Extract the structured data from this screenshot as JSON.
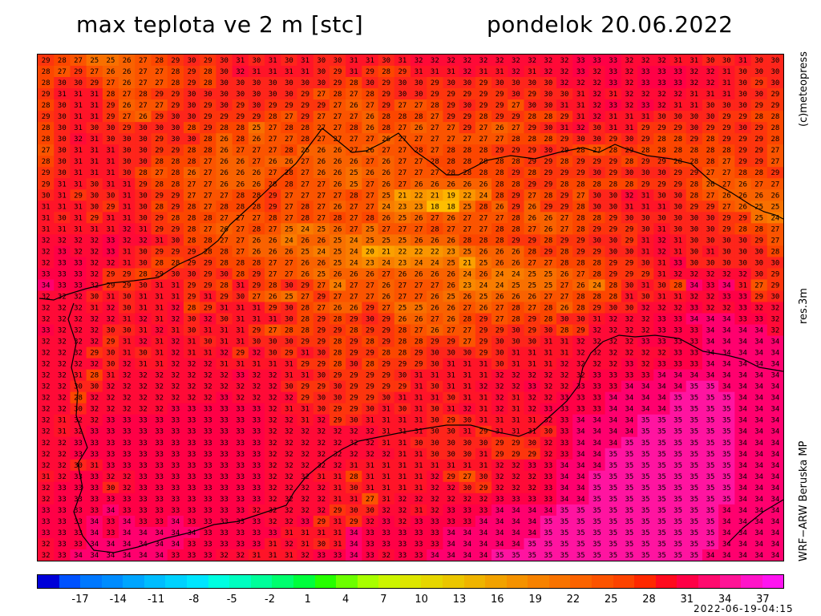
{
  "header": {
    "title_left": "max teplota ve 2 m [stc]",
    "title_right": "pondelok 20.06.2022"
  },
  "side_labels": {
    "credit": "(c)meteopress",
    "resolution": "res.3m",
    "model": "WRF−ARW Beruska MP"
  },
  "timestamp": "2022-06-19-04:15",
  "colorbar": {
    "colors": [
      "#0000d8",
      "#0052ff",
      "#0078ff",
      "#008cff",
      "#00a5ff",
      "#00bdff",
      "#00d2ff",
      "#00e6ff",
      "#00ffe1",
      "#00ffc0",
      "#00ff9a",
      "#00ff6e",
      "#00ff3c",
      "#26ff00",
      "#6cff00",
      "#a8ff00",
      "#ccf500",
      "#dde600",
      "#e6d600",
      "#ebc600",
      "#efb400",
      "#f2a200",
      "#f59200",
      "#f78200",
      "#f97300",
      "#fb6300",
      "#fc5300",
      "#fd4300",
      "#ff2800",
      "#ff0a1e",
      "#ff0046",
      "#ff0a6e",
      "#ff1496",
      "#ff14c8",
      "#ff14f0"
    ],
    "tick_labels": [
      "-17",
      "-14",
      "-11",
      "-8",
      "-5",
      "-2",
      "1",
      "4",
      "7",
      "10",
      "13",
      "16",
      "19",
      "22",
      "25",
      "28",
      "31",
      "34",
      "37"
    ]
  },
  "map_data": {
    "rows_visible": [
      "29 28 27 25 25 26 27 28 29 30 29 30 31 30 31 30 31 30 30 31 31 30 31 32 32 32 32 32 32 32 32 32 32 33 33 33 32 32 32 31 31 30 30 31 30 30",
      "28 27 29 27 26 26 27 27 28 29 28 30 32 31 31 31 31 30 29 31 29 28 29 31 31 31 32 31 31 32 31 32 32 33 32 33 32 33 33 33 32 32 31 30 30 30",
      "28 30 30 29 27 26 27 27 28 29 28 30 30 30 30 30 30 30 29 28 30 29 30 30 29 30 30 29 30 30 30 30 32 32 32 33 32 33 33 33 32 32 31 30 29 30",
      "29 31 31 31 28 27 28 29 29 30 30 30 30 30 30 30 29 27 28 27 28 29 30 30 29 29 29 29 29 30 29 30 30 31 32 31 32 32 32 32 31 31 31 30 30 29",
      "28 30 31 31 29 26 27 27 29 30 29 30 29 30 29 29 29 29 27 26 27 29 27 27 28 29 30 29 29 27 30 30 31 31 32 33 32 33 32 31 31 30 30 30 29 29",
      "29 30 31 31 29 27 26 29 30 30 29 29 29 29 28 27 29 27 27 27 26 28 28 28 27 29 29 28 29 29 28 28 29 31 32 31 31 31 30 30 30 30 29 29 28 28",
      "28 30 31 30 30 29 30 30 30 28 29 28 28 25 27 28 28 27 27 28 26 28 27 26 27 27 29 27 26 27 29 30 31 32 30 31 31 29 29 29 30 29 29 30 29 28",
      "28 30 32 31 30 30 30 29 30 30 28 26 28 26 27 27 28 27 27 27 27 26 27 27 27 27 27 27 27 28 28 28 29 30 30 29 30 29 28 28 29 28 29 29 29 28",
      "27 30 31 31 31 30 30 29 29 28 28 26 27 27 27 28 26 26 26 27 26 27 27 28 27 28 28 28 29 29 29 30 29 28 27 28 29 28 28 28 28 28 28 29 29 27",
      "28 30 31 31 31 30 30 28 28 28 27 26 26 27 26 26 27 26 26 26 27 26 27 27 28 28 28 28 28 28 29 29 28 29 29 29 28 29 29 28 28 28 27 29 29 27",
      "29 30 31 31 31 30 28 27 28 26 27 26 26 26 27 28 27 26 26 25 26 26 27 27 27 28 28 28 28 29 28 29 29 29 30 29 30 30 30 29 29 27 27 28 28 29",
      "29 31 31 30 31 31 29 28 28 27 27 26 26 26 28 28 27 27 26 25 27 26 27 26 26 26 26 26 28 28 29 29 28 28 28 28 28 29 29 29 28 26 27 26 27 27",
      "30 31 29 30 30 31 30 29 29 27 27 27 28 28 29 27 27 27 27 28 27 25 21 22 21 19 22 24 28 29 27 28 29 27 30 30 32 31 30 30 28 27 26 26 26 26",
      "31 31 31 30 29 31 30 28 29 28 27 28 28 28 29 27 28 27 26 27 27 24 23 23 18 18 25 28 26 29 26 29 29 28 30 30 31 31 31 30 29 29 27 26 25 25",
      "31 30 31 29 31 31 30 29 28 28 28 27 27 27 28 27 28 27 28 27 28 26 25 26 27 26 27 27 27 28 26 26 27 28 28 29 30 30 30 30 30 30 29 29 25 24",
      "31 31 31 31 31 32 31 29 29 28 27 26 27 28 27 25 24 25 26 27 25 27 27 27 28 27 27 27 28 28 27 26 27 28 29 29 29 30 31 30 30 30 29 28 28 27",
      "32 32 32 32 33 32 32 31 30 28 28 27 27 26 26 24 26 26 25 24 25 25 25 26 26 26 28 28 28 29 29 28 29 29 30 30 29 31 32 31 30 30 30 30 29 27",
      "32 33 32 32 33 31 30 29 29 29 28 28 27 26 26 26 25 24 25 24 20 21 22 22 22 23 25 26 26 26 28 29 28 29 29 30 30 31 32 31 30 31 30 30 30 28",
      "32 33 33 32 32 31 30 28 28 29 29 28 28 28 27 27 26 26 25 24 23 24 23 24 24 25 21 25 26 26 27 27 28 28 28 29 29 30 31 33 30 30 30 30 30 30",
      "33 33 33 32 29 29 28 29 30 30 29 30 28 29 27 27 26 25 26 26 26 27 26 26 26 26 24 26 24 24 25 25 26 27 28 29 29 29 31 32 32 32 32 32 30 29",
      "34 33 33 32 29 29 30 31 31 29 29 28 31 29 28 30 29 27 24 27 27 26 27 27 27 26 23 24 24 25 25 25 27 26 24 28 30 31 30 28 34 33 34 31 27 29",
      "32 32 32 30 31 30 31 31 31 29 31 29 30 27 26 25 27 29 27 27 27 26 27 27 26 25 26 25 26 26 26 27 27 28 28 28 31 30 31 31 32 32 33 33 29 30",
      "32 32 32 31 32 30 31 31 32 28 29 31 31 31 29 30 28 27 26 26 29 27 25 25 26 26 27 26 27 28 27 28 26 28 29 30 30 32 32 32 33 32 32 33 32 32",
      "32 32 32 32 32 31 32 31 32 30 32 30 31 31 31 30 28 29 28 29 30 29 26 26 27 26 28 29 27 28 29 28 30 30 31 32 32 32 33 33 34 34 34 33 33 32",
      "33 32 32 32 30 30 31 32 31 30 31 31 31 29 27 28 28 29 29 28 29 29 28 27 26 27 27 29 29 30 29 30 28 29 32 32 32 32 33 33 33 34 34 34 34 32",
      "32 32 32 32 29 31 32 31 32 31 30 31 31 30 30 30 29 29 28 29 28 29 28 28 29 29 27 29 30 30 30 31 31 32 32 32 32 33 33 33 33 34 34 34 34 34",
      "32 32 32 29 30 31 30 31 32 31 31 32 29 32 30 29 31 30 28 29 29 28 28 29 30 30 30 29 30 31 31 31 31 32 32 32 32 32 32 33 33 34 34 34 34 34",
      "32 32 32 32 30 32 31 31 32 32 32 31 31 31 31 31 29 29 28 30 28 29 29 29 30 31 31 31 30 31 31 31 32 32 32 32 33 32 33 33 33 34 34 34 34 34",
      "32 32 31 28 31 32 32 32 32 32 32 32 33 32 32 31 31 30 29 29 29 29 30 31 31 31 31 31 32 32 32 32 32 32 33 33 33 33 34 34 34 34 34 34 34 34",
      "32 32 30 30 32 32 32 32 32 32 32 32 32 32 32 30 29 29 30 29 29 29 29 31 30 31 31 32 32 32 33 32 32 33 33 33 34 34 34 34 35 35 34 34 34 34",
      "32 32 28 32 32 32 32 32 32 32 32 33 32 32 32 32 29 30 30 29 29 30 31 31 31 30 31 31 32 31 32 32 33 33 33 34 34 34 34 35 35 35 35 34 34 34",
      "32 32 30 32 32 32 32 32 33 33 33 33 33 33 32 31 31 30 29 29 30 31 30 31 30 31 32 31 32 31 32 33 33 33 33 34 34 34 34 35 35 35 35 34 34 34",
      "32 31 32 32 33 33 33 33 33 33 33 33 33 33 32 32 31 32 29 30 31 31 31 31 30 29 30 31 31 31 31 32 33 34 34 34 34 35 35 35 35 35 35 34 34 34",
      "32 31 32 33 33 33 33 33 33 33 33 33 33 33 32 32 32 32 32 32 32 31 31 31 30 30 31 29 31 31 31 30 33 34 34 34 34 35 35 35 35 35 35 34 34 34",
      "32 32 33 33 33 33 33 33 33 33 33 33 33 33 32 32 32 32 32 32 32 31 31 30 30 30 30 30 29 29 30 32 33 34 34 34 35 35 35 35 35 35 35 34 34 34",
      "32 32 33 33 33 33 33 33 33 33 33 33 33 33 32 32 32 32 32 32 32 32 31 31 30 30 30 31 29 29 29 32 33 34 34 35 35 35 35 35 35 35 35 34 34 34",
      "32 32 30 31 33 33 33 33 33 33 33 33 33 33 32 32 32 32 32 31 31 31 31 31 31 31 31 31 32 32 33 33 34 34 34 35 35 35 35 35 35 35 35 34 34 34",
      "31 32 33 33 32 32 33 33 33 33 33 33 33 33 32 32 32 31 31 28 31 31 31 31 32 29 27 30 32 32 32 33 34 34 35 35 35 35 35 35 35 35 35 34 34 34",
      "32 33 33 33 30 32 33 33 33 33 33 33 33 33 32 32 32 32 31 30 31 31 31 31 32 32 30 29 32 32 32 33 34 34 35 35 35 35 35 35 35 35 35 34 34 34",
      "32 33 33 33 33 33 33 33 33 33 33 33 33 33 32 32 32 32 31 31 27 31 32 32 32 32 32 32 33 33 33 33 34 34 35 35 35 35 35 35 35 35 35 34 34 34",
      "33 33 33 33 34 33 33 33 33 33 33 33 33 32 32 32 32 32 29 30 30 32 32 31 32 33 33 33 34 34 34 34 35 35 35 35 35 35 35 35 35 35 34 34 34 34",
      "33 33 33 34 33 34 33 33 34 33 33 33 33 33 32 32 33 29 31 29 32 33 32 33 33 33 33 34 34 34 34 35 35 35 35 35 35 35 35 35 35 35 34 34 34 34",
      "33 33 33 34 33 34 34 34 34 34 33 33 33 33 33 31 31 31 31 34 33 33 33 33 33 34 34 34 34 34 34 35 35 35 35 35 35 35 35 35 35 35 34 34 34 34",
      "32 33 33 34 34 34 34 34 34 33 33 33 33 33 31 32 31 30 31 34 33 33 33 33 33 34 34 34 34 34 35 35 35 35 35 35 35 35 35 35 35 35 34 34 34 34",
      "32 33 34 34 34 34 34 34 33 33 33 32 32 31 31 31 32 33 33 34 33 32 33 33 34 34 34 34 35 35 35 35 35 35 35 35 35 35 35 35 35 34 34 34 34 34"
    ]
  }
}
